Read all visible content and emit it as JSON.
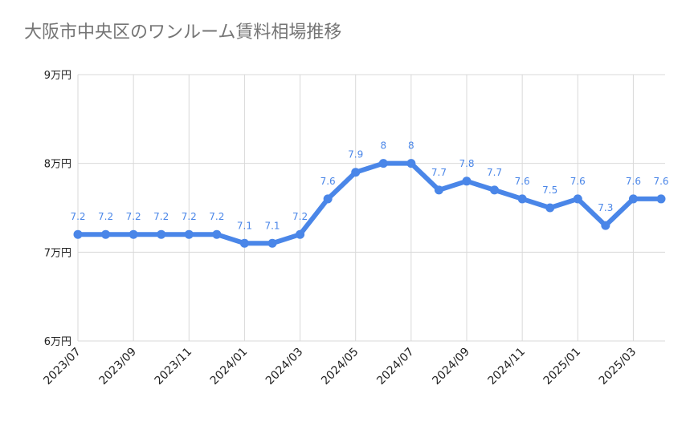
{
  "chart_data": {
    "type": "line",
    "title": "大阪市中央区のワンルーム賃料相場推移",
    "x": [
      "2023/07",
      "2023/08",
      "2023/09",
      "2023/10",
      "2023/11",
      "2023/12",
      "2024/01",
      "2024/02",
      "2024/03",
      "2024/04",
      "2024/05",
      "2024/06",
      "2024/07",
      "2024/08",
      "2024/09",
      "2024/10",
      "2024/11",
      "2024/12",
      "2025/01",
      "2025/02",
      "2025/03",
      "2025/04"
    ],
    "x_tick_labels": [
      "2023/07",
      "2023/09",
      "2023/11",
      "2024/01",
      "2024/03",
      "2024/05",
      "2024/07",
      "2024/09",
      "2024/11",
      "2025/01",
      "2025/03"
    ],
    "series": [
      {
        "values": [
          7.2,
          7.2,
          7.2,
          7.2,
          7.2,
          7.2,
          7.1,
          7.1,
          7.2,
          7.6,
          7.9,
          8,
          8,
          7.7,
          7.8,
          7.7,
          7.6,
          7.5,
          7.6,
          7.3,
          7.6,
          7.6
        ],
        "labels": [
          "7.2",
          "7.2",
          "7.2",
          "7.2",
          "7.2",
          "7.2",
          "7.1",
          "7.1",
          "7.2",
          "7.6",
          "7.9",
          "8",
          "8",
          "7.7",
          "7.8",
          "7.7",
          "7.6",
          "7.5",
          "7.6",
          "7.3",
          "7.6",
          "7.6"
        ],
        "color": "#4a86e8"
      }
    ],
    "y_ticks": [
      {
        "value": 6,
        "label": "6万円"
      },
      {
        "value": 7,
        "label": "7万円"
      },
      {
        "value": 8,
        "label": "8万円"
      },
      {
        "value": 9,
        "label": "9万円"
      }
    ],
    "ylim": [
      6,
      9
    ],
    "xlabel": "",
    "ylabel": "",
    "grid": true,
    "legend": "none"
  }
}
